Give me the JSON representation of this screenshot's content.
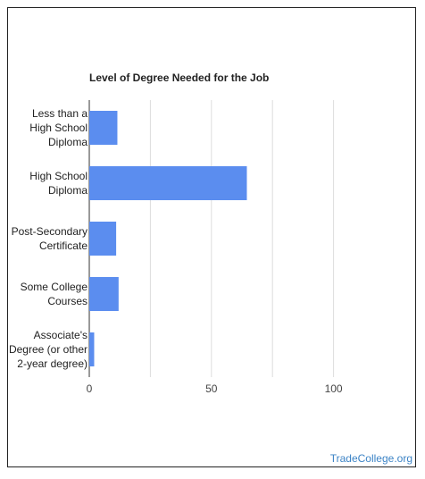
{
  "chart_data": {
    "type": "bar",
    "orientation": "horizontal",
    "title": "Level of Degree Needed for the Job",
    "categories": [
      "Less than a\nHigh School\nDiploma",
      "High School\nDiploma",
      "Post-Secondary\nCertificate",
      "Some College\nCourses",
      "Associate's\nDegree (or other\n2-year degree)"
    ],
    "values": [
      11.5,
      64.5,
      11,
      12,
      2
    ],
    "xlim": [
      0,
      125
    ],
    "x_ticks": [
      0,
      50,
      100
    ],
    "x_tick_labels": [
      "0",
      "50",
      "100"
    ],
    "gridlines": [
      0,
      25,
      50,
      75,
      100
    ],
    "grid": true,
    "bar_color": "#5b8def"
  },
  "watermark": {
    "text": "TradeCollege.org",
    "color": "#3d84c6"
  }
}
